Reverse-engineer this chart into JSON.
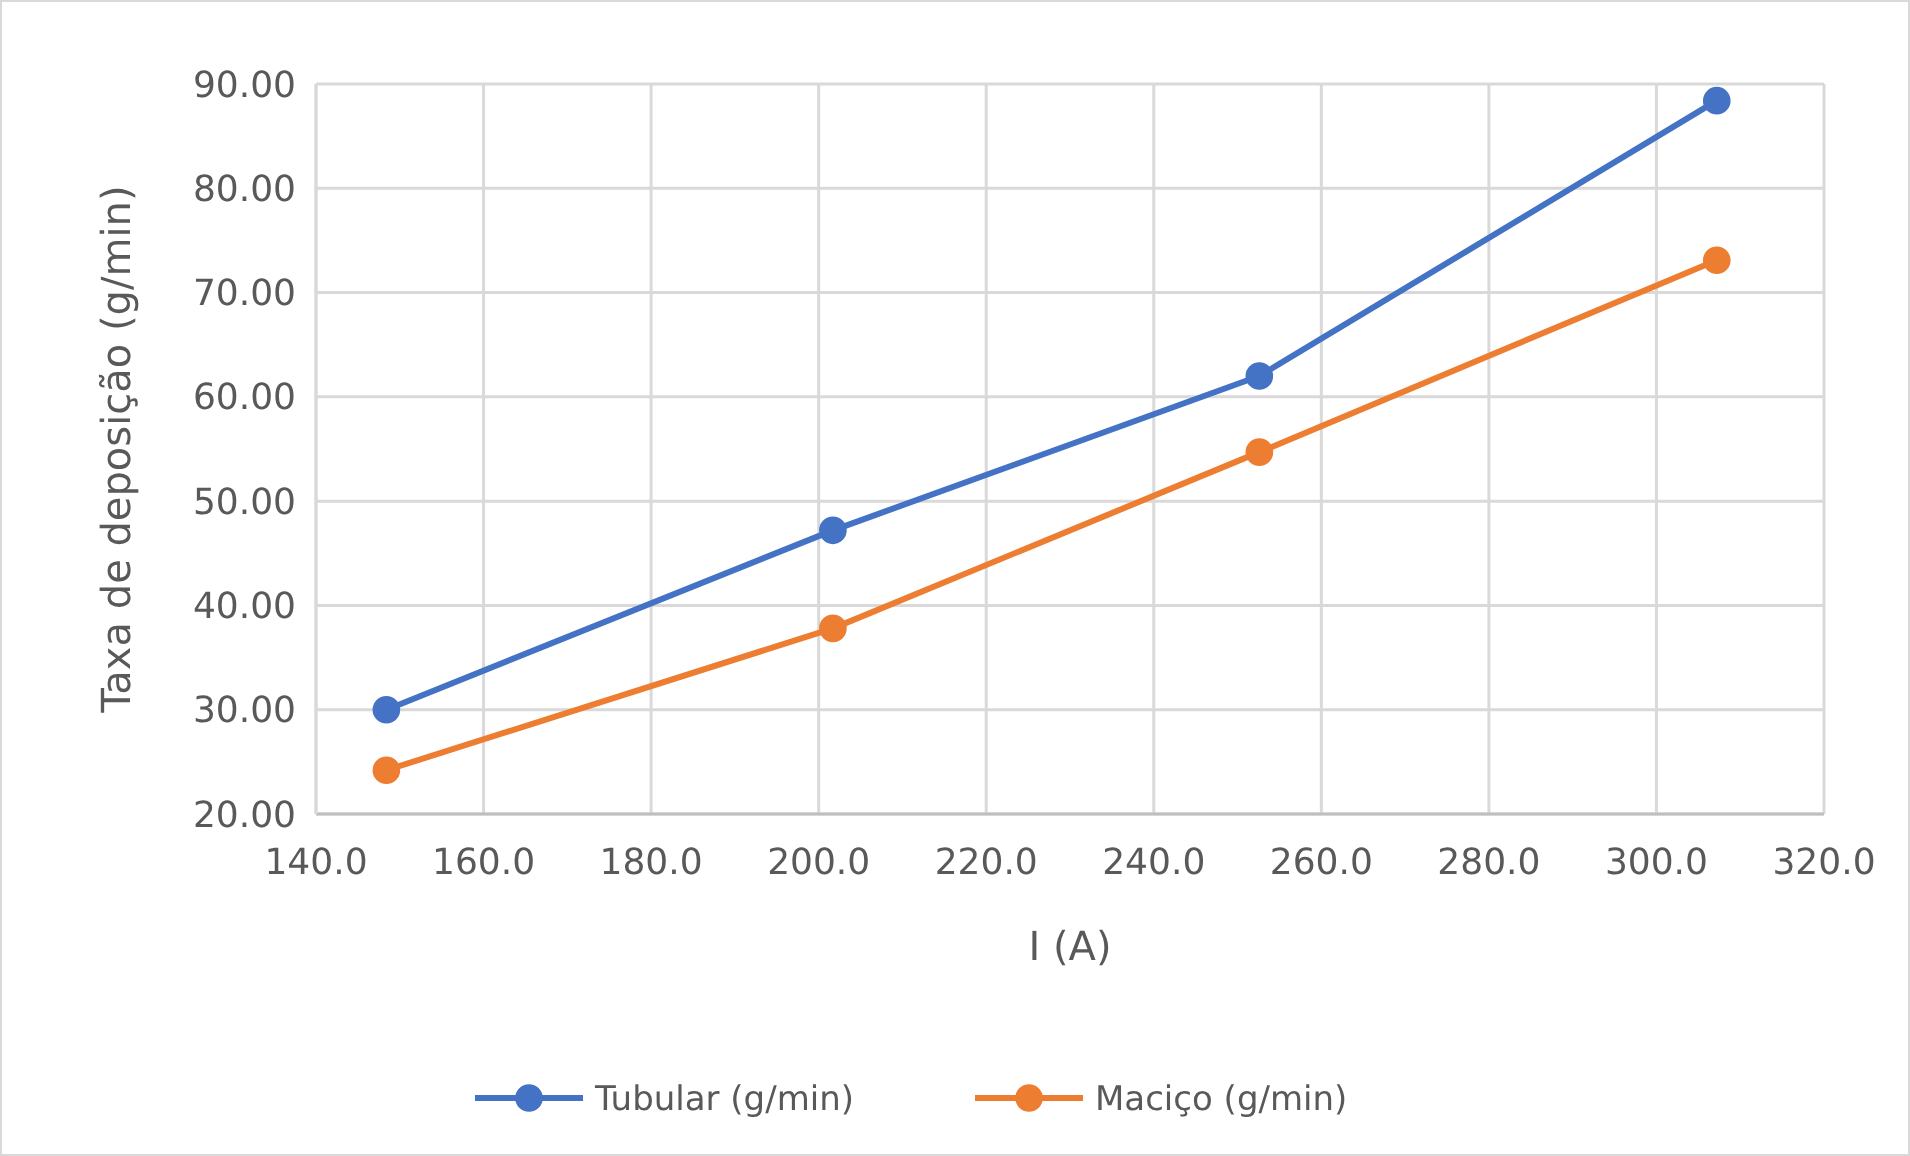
{
  "chart_data": {
    "type": "line",
    "xlabel": "I (A)",
    "ylabel": "Taxa de deposição (g/min)",
    "x": [
      148.4,
      201.7,
      252.6,
      307.2
    ],
    "series": [
      {
        "name": "Tubular (g/min)",
        "color": "#4472c4",
        "values": [
          30.0,
          47.2,
          62.0,
          88.4
        ]
      },
      {
        "name": "Maciço (g/min)",
        "color": "#ed7d31",
        "values": [
          24.2,
          37.8,
          54.7,
          73.1
        ]
      }
    ],
    "xlim": [
      140,
      320
    ],
    "xticks": [
      {
        "value": 140,
        "label": "140.0"
      },
      {
        "value": 160,
        "label": "160.0"
      },
      {
        "value": 180,
        "label": "180.0"
      },
      {
        "value": 200,
        "label": "200.0"
      },
      {
        "value": 220,
        "label": "220.0"
      },
      {
        "value": 240,
        "label": "240.0"
      },
      {
        "value": 260,
        "label": "260.0"
      },
      {
        "value": 280,
        "label": "280.0"
      },
      {
        "value": 300,
        "label": "300.0"
      },
      {
        "value": 320,
        "label": "320.0"
      }
    ],
    "ylim": [
      20,
      90
    ],
    "yticks": [
      {
        "value": 20,
        "label": "20.00"
      },
      {
        "value": 30,
        "label": "30.00"
      },
      {
        "value": 40,
        "label": "40.00"
      },
      {
        "value": 50,
        "label": "50.00"
      },
      {
        "value": 60,
        "label": "60.00"
      },
      {
        "value": 70,
        "label": "70.00"
      },
      {
        "value": 80,
        "label": "80.00"
      },
      {
        "value": 90,
        "label": "90.00"
      }
    ],
    "grid": true,
    "legend": "bottom",
    "marker": "circle",
    "line_style": "solid"
  }
}
